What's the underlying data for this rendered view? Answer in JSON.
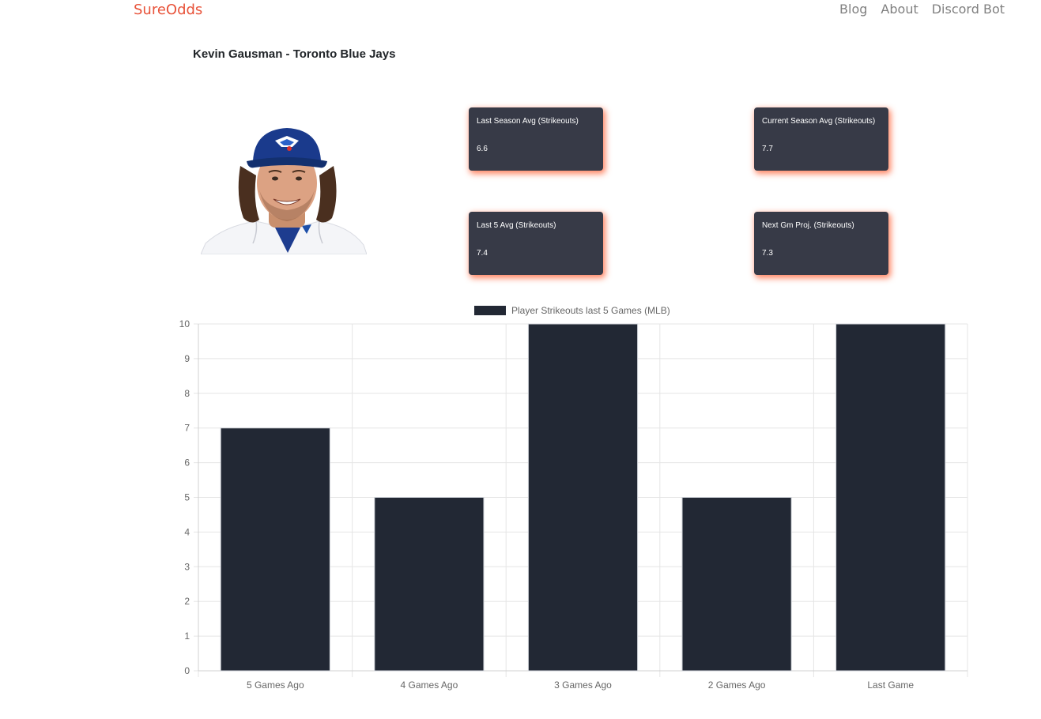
{
  "nav": {
    "brand": "SureOdds",
    "links": [
      "Blog",
      "About",
      "Discord Bot"
    ]
  },
  "player": {
    "title": "Kevin Gausman - Toronto Blue Jays"
  },
  "stats": {
    "last_season": {
      "label": "Last Season Avg (Strikeouts)",
      "value": "6.6"
    },
    "current_season": {
      "label": "Current Season Avg (Strikeouts)",
      "value": "7.7"
    },
    "last5": {
      "label": "Last 5 Avg (Strikeouts)",
      "value": "7.4"
    },
    "next_game": {
      "label": "Next Gm Proj. (Strikeouts)",
      "value": "7.3"
    }
  },
  "colors": {
    "brand": "#e8533a",
    "card_bg": "#373a47",
    "card_glow": "#ff6e46",
    "bar_fill": "#222834"
  },
  "chart_data": {
    "type": "bar",
    "categories": [
      "5 Games Ago",
      "4 Games Ago",
      "3 Games Ago",
      "2 Games Ago",
      "Last Game"
    ],
    "series": [
      {
        "name": "Player Strikeouts last 5 Games (MLB)",
        "values": [
          7,
          5,
          10,
          5,
          10
        ]
      }
    ],
    "ylim": [
      0,
      10
    ],
    "yticks": [
      0,
      1,
      2,
      3,
      4,
      5,
      6,
      7,
      8,
      9,
      10
    ],
    "grid": true,
    "legend": "top-center"
  }
}
